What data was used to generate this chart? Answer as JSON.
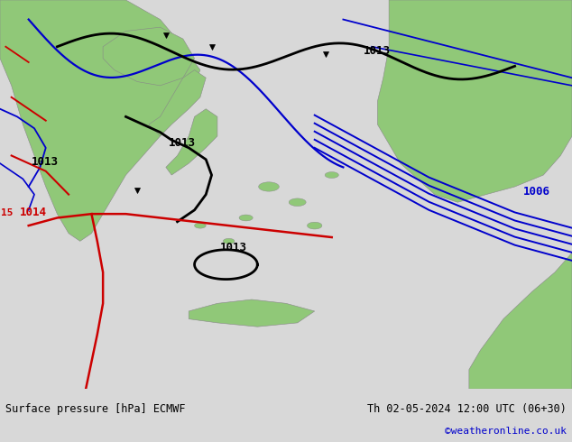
{
  "title_left": "Surface pressure [hPa] ECMWF",
  "title_right": "Th 02-05-2024 12:00 UTC (06+30)",
  "watermark": "©weatheronline.co.uk",
  "bg_color": "#d8d8d8",
  "map_bg": "#e0e0e0",
  "green_color": "#90c878",
  "isobar_color_black": "#000000",
  "isobar_color_blue": "#0000cc",
  "isobar_color_red": "#cc0000"
}
